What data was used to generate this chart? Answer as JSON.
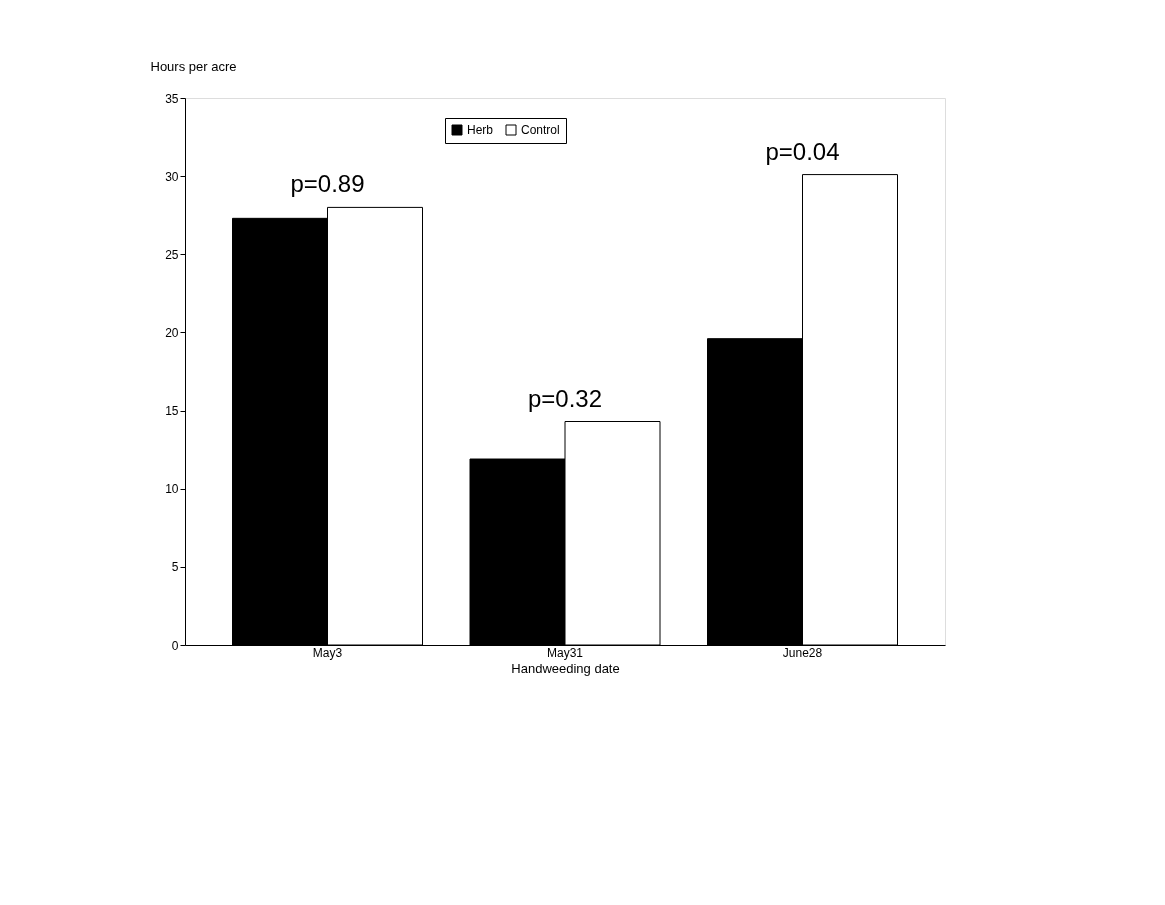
{
  "chart_data": {
    "type": "bar",
    "xlabel": "Handweeding date",
    "ylabel": "Hours per acre",
    "categories": [
      "May3",
      "May31",
      "June28"
    ],
    "series": [
      {
        "name": "Herb",
        "color": "#000000",
        "values": [
          27.3,
          11.9,
          19.6
        ]
      },
      {
        "name": "Control",
        "color": "#ffffff",
        "values": [
          28.0,
          14.3,
          30.1
        ]
      }
    ],
    "ylim": [
      0,
      35
    ],
    "yticks": [
      0,
      5,
      10,
      15,
      20,
      25,
      30,
      35
    ],
    "grid": false,
    "legend": "top",
    "annotations": [
      {
        "text": "p=0.89",
        "x": "May3",
        "y": 28.0
      },
      {
        "text": "p=0.32",
        "x": "May31",
        "y": 14.3
      },
      {
        "text": "p=0.04",
        "x": "June28",
        "y": 30.1
      }
    ]
  }
}
